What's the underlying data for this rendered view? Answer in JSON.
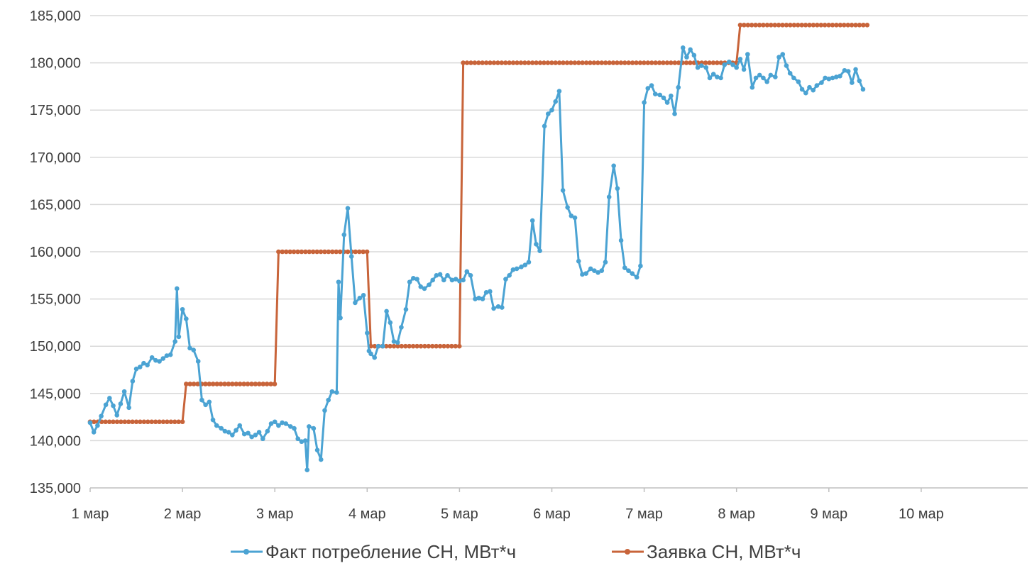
{
  "chart_data": {
    "type": "line",
    "title": "",
    "xlabel": "",
    "ylabel": "",
    "ylim": [
      135000,
      185000
    ],
    "y_ticks": [
      "135,000",
      "140,000",
      "145,000",
      "150,000",
      "155,000",
      "160,000",
      "165,000",
      "170,000",
      "175,000",
      "180,000",
      "185,000"
    ],
    "x_ticks": [
      "1 мар",
      "2 мар",
      "3 мар",
      "4 мар",
      "5 мар",
      "6 мар",
      "7 мар",
      "8 мар",
      "9 мар",
      "10 мар"
    ],
    "xlim_days": [
      1,
      11
    ],
    "grid": "horizontal",
    "legend_position": "bottom",
    "colors": {
      "fact": "#4ba3d3",
      "request": "#c8643a",
      "grid": "#d9d9d9",
      "axis": "#bfbfbf"
    },
    "series": [
      {
        "name": "Факт потребление СН, МВт*ч",
        "color": "#4ba3d3",
        "points": [
          [
            1.0,
            141900
          ],
          [
            1.04,
            140900
          ],
          [
            1.08,
            141600
          ],
          [
            1.12,
            142600
          ],
          [
            1.17,
            143800
          ],
          [
            1.21,
            144500
          ],
          [
            1.25,
            143700
          ],
          [
            1.29,
            142700
          ],
          [
            1.33,
            143900
          ],
          [
            1.37,
            145200
          ],
          [
            1.42,
            143500
          ],
          [
            1.46,
            146300
          ],
          [
            1.5,
            147600
          ],
          [
            1.54,
            147800
          ],
          [
            1.58,
            148200
          ],
          [
            1.62,
            148000
          ],
          [
            1.67,
            148800
          ],
          [
            1.71,
            148500
          ],
          [
            1.75,
            148400
          ],
          [
            1.79,
            148700
          ],
          [
            1.83,
            149000
          ],
          [
            1.87,
            149100
          ],
          [
            1.92,
            150500
          ],
          [
            1.94,
            156100
          ],
          [
            1.96,
            151000
          ],
          [
            2.0,
            153900
          ],
          [
            2.04,
            152900
          ],
          [
            2.08,
            149800
          ],
          [
            2.12,
            149600
          ],
          [
            2.17,
            148400
          ],
          [
            2.21,
            144300
          ],
          [
            2.25,
            143800
          ],
          [
            2.29,
            144100
          ],
          [
            2.33,
            142200
          ],
          [
            2.37,
            141600
          ],
          [
            2.42,
            141300
          ],
          [
            2.46,
            141000
          ],
          [
            2.5,
            140900
          ],
          [
            2.54,
            140600
          ],
          [
            2.58,
            141100
          ],
          [
            2.62,
            141600
          ],
          [
            2.67,
            140700
          ],
          [
            2.71,
            140800
          ],
          [
            2.75,
            140400
          ],
          [
            2.79,
            140600
          ],
          [
            2.83,
            140900
          ],
          [
            2.87,
            140200
          ],
          [
            2.92,
            141000
          ],
          [
            2.96,
            141800
          ],
          [
            3.0,
            142000
          ],
          [
            3.04,
            141600
          ],
          [
            3.08,
            141900
          ],
          [
            3.12,
            141800
          ],
          [
            3.17,
            141500
          ],
          [
            3.21,
            141300
          ],
          [
            3.25,
            140200
          ],
          [
            3.29,
            139900
          ],
          [
            3.33,
            140000
          ],
          [
            3.35,
            136900
          ],
          [
            3.37,
            141500
          ],
          [
            3.42,
            141300
          ],
          [
            3.46,
            139000
          ],
          [
            3.5,
            138000
          ],
          [
            3.54,
            143200
          ],
          [
            3.58,
            144300
          ],
          [
            3.62,
            145200
          ],
          [
            3.67,
            145100
          ],
          [
            3.69,
            156800
          ],
          [
            3.71,
            153000
          ],
          [
            3.75,
            161800
          ],
          [
            3.79,
            164600
          ],
          [
            3.83,
            159500
          ],
          [
            3.87,
            154600
          ],
          [
            3.92,
            155100
          ],
          [
            3.96,
            155400
          ],
          [
            4.0,
            151400
          ],
          [
            4.02,
            149500
          ],
          [
            4.04,
            149200
          ],
          [
            4.08,
            148800
          ],
          [
            4.12,
            150000
          ],
          [
            4.17,
            150000
          ],
          [
            4.21,
            153700
          ],
          [
            4.25,
            152500
          ],
          [
            4.29,
            150500
          ],
          [
            4.33,
            150400
          ],
          [
            4.37,
            152000
          ],
          [
            4.42,
            153900
          ],
          [
            4.46,
            156800
          ],
          [
            4.5,
            157200
          ],
          [
            4.54,
            157100
          ],
          [
            4.58,
            156300
          ],
          [
            4.62,
            156100
          ],
          [
            4.67,
            156500
          ],
          [
            4.71,
            157000
          ],
          [
            4.75,
            157500
          ],
          [
            4.79,
            157600
          ],
          [
            4.83,
            157000
          ],
          [
            4.87,
            157500
          ],
          [
            4.92,
            157000
          ],
          [
            4.96,
            157100
          ],
          [
            5.0,
            156900
          ],
          [
            5.04,
            157000
          ],
          [
            5.08,
            157900
          ],
          [
            5.12,
            157500
          ],
          [
            5.17,
            155000
          ],
          [
            5.21,
            155100
          ],
          [
            5.25,
            155000
          ],
          [
            5.29,
            155700
          ],
          [
            5.33,
            155800
          ],
          [
            5.37,
            154000
          ],
          [
            5.42,
            154200
          ],
          [
            5.46,
            154100
          ],
          [
            5.5,
            157100
          ],
          [
            5.54,
            157500
          ],
          [
            5.58,
            158100
          ],
          [
            5.62,
            158200
          ],
          [
            5.67,
            158400
          ],
          [
            5.71,
            158600
          ],
          [
            5.75,
            158900
          ],
          [
            5.79,
            163300
          ],
          [
            5.83,
            160800
          ],
          [
            5.87,
            160100
          ],
          [
            5.92,
            173300
          ],
          [
            5.96,
            174600
          ],
          [
            6.0,
            175000
          ],
          [
            6.04,
            175900
          ],
          [
            6.08,
            177000
          ],
          [
            6.12,
            166500
          ],
          [
            6.17,
            164700
          ],
          [
            6.21,
            163800
          ],
          [
            6.25,
            163600
          ],
          [
            6.29,
            159000
          ],
          [
            6.33,
            157600
          ],
          [
            6.37,
            157700
          ],
          [
            6.42,
            158200
          ],
          [
            6.46,
            158000
          ],
          [
            6.5,
            157800
          ],
          [
            6.54,
            158000
          ],
          [
            6.58,
            158900
          ],
          [
            6.62,
            165800
          ],
          [
            6.67,
            169100
          ],
          [
            6.71,
            166700
          ],
          [
            6.75,
            161200
          ],
          [
            6.79,
            158300
          ],
          [
            6.83,
            158000
          ],
          [
            6.87,
            157700
          ],
          [
            6.92,
            157300
          ],
          [
            6.96,
            158500
          ],
          [
            7.0,
            175800
          ],
          [
            7.04,
            177300
          ],
          [
            7.08,
            177600
          ],
          [
            7.12,
            176700
          ],
          [
            7.17,
            176600
          ],
          [
            7.21,
            176300
          ],
          [
            7.25,
            175800
          ],
          [
            7.29,
            176500
          ],
          [
            7.33,
            174600
          ],
          [
            7.37,
            177400
          ],
          [
            7.42,
            181600
          ],
          [
            7.46,
            180600
          ],
          [
            7.5,
            181400
          ],
          [
            7.54,
            180800
          ],
          [
            7.58,
            179500
          ],
          [
            7.62,
            179700
          ],
          [
            7.67,
            179500
          ],
          [
            7.71,
            178400
          ],
          [
            7.75,
            178800
          ],
          [
            7.79,
            178500
          ],
          [
            7.83,
            178400
          ],
          [
            7.87,
            179800
          ],
          [
            7.92,
            180100
          ],
          [
            7.96,
            179800
          ],
          [
            8.0,
            179500
          ],
          [
            8.04,
            180400
          ],
          [
            8.08,
            179300
          ],
          [
            8.12,
            180900
          ],
          [
            8.17,
            177400
          ],
          [
            8.21,
            178400
          ],
          [
            8.25,
            178700
          ],
          [
            8.29,
            178400
          ],
          [
            8.33,
            178000
          ],
          [
            8.37,
            178700
          ],
          [
            8.42,
            178500
          ],
          [
            8.46,
            180600
          ],
          [
            8.5,
            180900
          ],
          [
            8.54,
            179700
          ],
          [
            8.58,
            178900
          ],
          [
            8.62,
            178400
          ],
          [
            8.67,
            178000
          ],
          [
            8.71,
            177200
          ],
          [
            8.75,
            176800
          ],
          [
            8.79,
            177400
          ],
          [
            8.83,
            177100
          ],
          [
            8.87,
            177600
          ],
          [
            8.92,
            177900
          ],
          [
            8.96,
            178400
          ],
          [
            9.0,
            178300
          ],
          [
            9.04,
            178400
          ],
          [
            9.08,
            178500
          ],
          [
            9.12,
            178600
          ],
          [
            9.17,
            179200
          ],
          [
            9.21,
            179100
          ],
          [
            9.25,
            177900
          ],
          [
            9.29,
            179300
          ],
          [
            9.33,
            178100
          ],
          [
            9.37,
            177200
          ]
        ]
      },
      {
        "name": "Заявка СН, МВт*ч",
        "color": "#c8643a",
        "points": [
          [
            1.0,
            142000
          ],
          [
            2.0,
            142000
          ],
          [
            2.04,
            146000
          ],
          [
            3.0,
            146000
          ],
          [
            3.04,
            160000
          ],
          [
            4.0,
            160000
          ],
          [
            4.04,
            150000
          ],
          [
            5.0,
            150000
          ],
          [
            5.04,
            180000
          ],
          [
            8.0,
            180000
          ],
          [
            8.04,
            184000
          ],
          [
            9.42,
            184000
          ]
        ]
      }
    ]
  }
}
